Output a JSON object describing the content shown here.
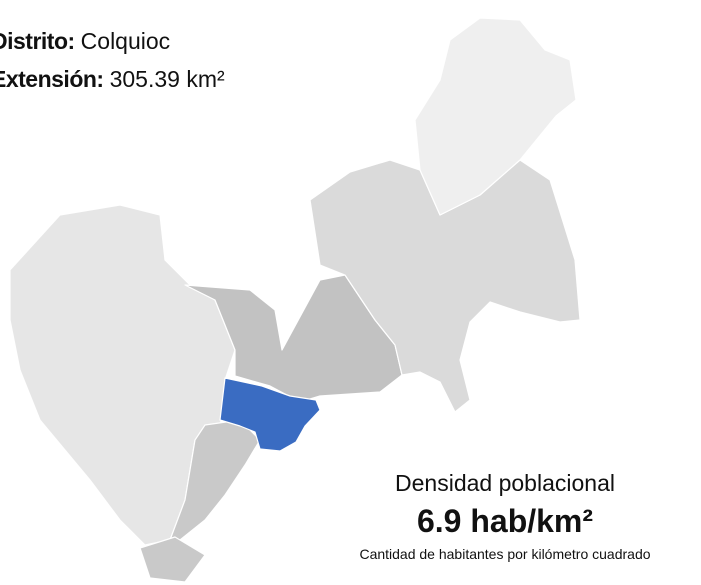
{
  "district": {
    "label": "Distrito:",
    "value": "Colquioc"
  },
  "extension": {
    "label": "Extensión:",
    "value": "305.39 km²"
  },
  "density": {
    "title": "Densidad poblacional",
    "value": "6.9 hab/km²",
    "caption": "Cantidad de habitantes por kilómetro cuadrado"
  }
}
